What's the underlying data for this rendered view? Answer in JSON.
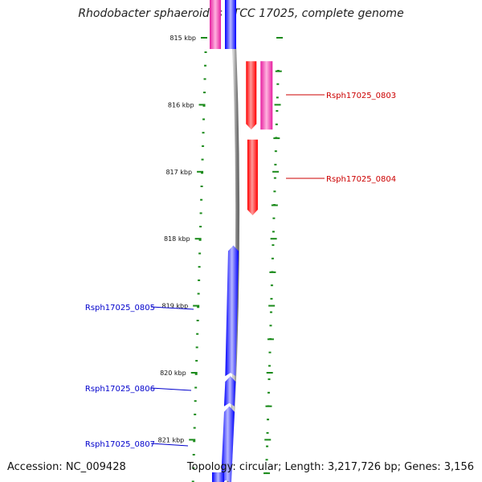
{
  "title": "Rhodobacter sphaeroides ATCC 17025, complete genome",
  "footer": {
    "accession": "Accession: NC_009428",
    "summary": "Topology: circular; Length: 3,217,726 bp; Genes: 3,156"
  },
  "colors": {
    "forward_gene": "#0000ff",
    "reverse_gene": "#ff0000",
    "reverse_gene_alt": "#e61fa0",
    "backbone": "#808080",
    "tick": "#1a8a1a",
    "forward_label": "#0000cc",
    "reverse_label": "#cc0000"
  },
  "ticks": [
    {
      "label": "815 kbp",
      "kb": 815
    },
    {
      "label": "816 kbp",
      "kb": 816
    },
    {
      "label": "817 kbp",
      "kb": 817
    },
    {
      "label": "818 kbp",
      "kb": 818
    },
    {
      "label": "819 kbp",
      "kb": 819
    },
    {
      "label": "820 kbp",
      "kb": 820
    },
    {
      "label": "821 kbp",
      "kb": 821
    }
  ],
  "genes": [
    {
      "name": "Rsph17025_0803",
      "strand": "reverse",
      "start_kb": 815.35,
      "end_kb": 816.37
    },
    {
      "name": "Rsph17025_0804",
      "strand": "reverse",
      "start_kb": 816.52,
      "end_kb": 817.65
    },
    {
      "name": "Rsph17025_0805",
      "strand": "forward",
      "start_kb": 818.1,
      "end_kb": 820.05
    },
    {
      "name": "Rsph17025_0806",
      "strand": "forward",
      "start_kb": 820.05,
      "end_kb": 820.5
    },
    {
      "name": "Rsph17025_0807",
      "strand": "forward",
      "start_kb": 820.5,
      "end_kb": 821.65
    }
  ]
}
